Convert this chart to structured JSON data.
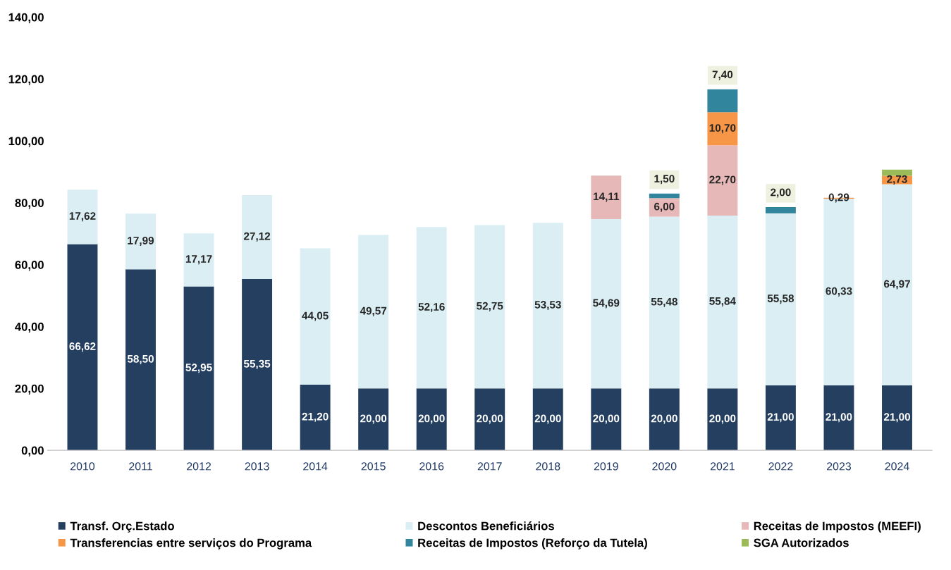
{
  "chart_data": {
    "type": "bar",
    "stacked": true,
    "categories": [
      "2010",
      "2011",
      "2012",
      "2013",
      "2014",
      "2015",
      "2016",
      "2017",
      "2018",
      "2019",
      "2020",
      "2021",
      "2022",
      "2023",
      "2024"
    ],
    "ylim": [
      0,
      140
    ],
    "yticks": [
      {
        "value": 0,
        "label": "0,00"
      },
      {
        "value": 20,
        "label": "20,00"
      },
      {
        "value": 40,
        "label": "40,00"
      },
      {
        "value": 60,
        "label": "60,00"
      },
      {
        "value": 80,
        "label": "80,00"
      },
      {
        "value": 100,
        "label": "100,00"
      },
      {
        "value": 120,
        "label": "120,00"
      },
      {
        "value": 140,
        "label": "140,00"
      }
    ],
    "grid": false,
    "legend": "bottom",
    "series": [
      {
        "name": "Transf. Orç.Estado",
        "color": "#243f60",
        "values": [
          66.62,
          58.5,
          52.95,
          55.35,
          21.2,
          20.0,
          20.0,
          20.0,
          20.0,
          20.0,
          20.0,
          20.0,
          21.0,
          21.0,
          21.0
        ],
        "value_labels": [
          "66,62",
          "58,50",
          "52,95",
          "55,35",
          "21,20",
          "20,00",
          "20,00",
          "20,00",
          "20,00",
          "20,00",
          "20,00",
          "20,00",
          "21,00",
          "21,00",
          "21,00"
        ]
      },
      {
        "name": "Descontos Beneficiários",
        "color": "#daeef3",
        "values": [
          17.62,
          17.99,
          17.17,
          27.12,
          44.05,
          49.57,
          52.16,
          52.75,
          53.53,
          54.69,
          55.48,
          55.84,
          55.58,
          60.33,
          64.97
        ],
        "value_labels": [
          "17,62",
          "17,99",
          "17,17",
          "27,12",
          "44,05",
          "49,57",
          "52,16",
          "52,75",
          "53,53",
          "54,69",
          "55,48",
          "55,84",
          "55,58",
          "60,33",
          "64,97"
        ]
      },
      {
        "name": "Receitas de Impostos (MEEFI)",
        "color": "#e6b9b8",
        "values": [
          null,
          null,
          null,
          null,
          null,
          null,
          null,
          null,
          null,
          14.11,
          6.0,
          22.7,
          null,
          null,
          null
        ],
        "value_labels": [
          null,
          null,
          null,
          null,
          null,
          null,
          null,
          null,
          null,
          "14,11",
          "6,00",
          "22,70",
          null,
          null,
          null
        ]
      },
      {
        "name": "Transferencias entre serviços do Programa",
        "color": "#f79646",
        "values": [
          null,
          null,
          null,
          null,
          null,
          null,
          null,
          null,
          null,
          null,
          null,
          10.7,
          null,
          0.29,
          2.73
        ],
        "value_labels": [
          null,
          null,
          null,
          null,
          null,
          null,
          null,
          null,
          null,
          null,
          null,
          "10,70",
          null,
          "0,29",
          "2,73"
        ]
      },
      {
        "name": "Receitas de Impostos (Reforço da Tutela)",
        "color": "#31859c",
        "values": [
          null,
          null,
          null,
          null,
          null,
          null,
          null,
          null,
          null,
          null,
          1.5,
          7.4,
          2.0,
          null,
          null
        ],
        "value_labels": [
          null,
          null,
          null,
          null,
          null,
          null,
          null,
          null,
          null,
          null,
          "1,50",
          "7,40",
          "2,00",
          null,
          null
        ]
      },
      {
        "name": "SGA Autorizados",
        "color": "#9bbb59",
        "values": [
          null,
          null,
          null,
          null,
          null,
          null,
          null,
          null,
          null,
          null,
          null,
          null,
          null,
          null,
          2.0
        ]
      }
    ]
  }
}
